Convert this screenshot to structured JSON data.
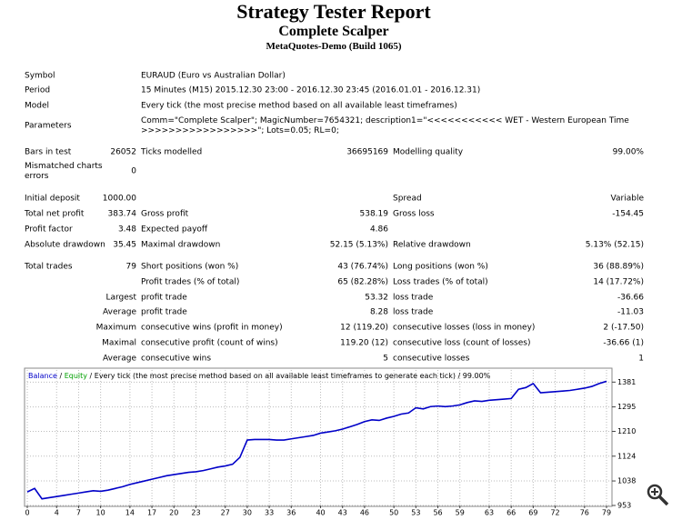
{
  "header": {
    "title": "Strategy Tester Report",
    "subtitle": "Complete Scalper",
    "server": "MetaQuotes-Demo (Build 1065)"
  },
  "table": {
    "rows": [
      {
        "c1": "Symbol",
        "c3": [
          "EURAUD (Euro vs Australian Dollar)"
        ]
      },
      {
        "c1": "Period",
        "c3": [
          "15 Minutes (M15) 2015.12.30 23:00 - 2016.12.30 23:45 (2016.01.01 - 2016.12.31)"
        ]
      },
      {
        "c1": "Model",
        "c3": [
          "Every tick (the most precise method based on all available least timeframes)"
        ]
      },
      {
        "c1": "Parameters",
        "c3": [
          "Comm=\"Complete Scalper\"; MagicNumber=7654321; description1=\"<<<<<<<<<<< WET - Western European Time",
          ">>>>>>>>>>>>>>>>>\"; Lots=0.05; RL=0;"
        ]
      },
      {
        "c1": "Bars in test",
        "c2": "26052",
        "c3": [
          "Ticks modelled"
        ],
        "c4": "36695169",
        "c5": "Modelling quality",
        "c6": "99.00%"
      },
      {
        "c1": [
          "Mismatched charts",
          "errors"
        ],
        "c2": "0"
      },
      {
        "c1": "Initial deposit",
        "c2": "1000.00",
        "c5": "Spread",
        "c6": "Variable"
      },
      {
        "c1": "Total net profit",
        "c2": "383.74",
        "c3": [
          "Gross profit"
        ],
        "c4": "538.19",
        "c5": "Gross loss",
        "c6": "-154.45"
      },
      {
        "c1": "Profit factor",
        "c2": "3.48",
        "c3": [
          "Expected payoff"
        ],
        "c4": "4.86"
      },
      {
        "c1": "Absolute drawdown",
        "c2": "35.45",
        "c3": [
          "Maximal drawdown"
        ],
        "c4": "52.15 (5.13%)",
        "c5": "Relative drawdown",
        "c6": "5.13% (52.15)"
      },
      {
        "c1": "Total trades",
        "c2": "79",
        "c3": [
          "Short positions (won %)"
        ],
        "c4": "43 (76.74%)",
        "c5": "Long positions (won %)",
        "c6": "36 (88.89%)"
      },
      {
        "c3": [
          "Profit trades (% of total)"
        ],
        "c4": "65 (82.28%)",
        "c5": "Loss trades (% of total)",
        "c6": "14 (17.72%)"
      },
      {
        "c2": "Largest",
        "c3": [
          "profit trade"
        ],
        "c4": "53.32",
        "c5": "loss trade",
        "c6": "-36.66"
      },
      {
        "c2": "Average",
        "c3": [
          "profit trade"
        ],
        "c4": "8.28",
        "c5": "loss trade",
        "c6": "-11.03"
      },
      {
        "c2": "Maximum",
        "c3": [
          "consecutive wins (profit in money)"
        ],
        "c4": "12 (119.20)",
        "c5": "consecutive losses (loss in money)",
        "c6": "2 (-17.50)"
      },
      {
        "c2": "Maximal",
        "c3": [
          "consecutive profit (count of wins)"
        ],
        "c4": "119.20 (12)",
        "c5": "consecutive loss (count of losses)",
        "c6": "-36.66 (1)"
      },
      {
        "c2": "Average",
        "c3": [
          "consecutive wins"
        ],
        "c4": "5",
        "c5": "consecutive losses",
        "c6": "1"
      }
    ]
  },
  "chart_data": {
    "type": "line",
    "legend": [
      {
        "text": "Balance",
        "color": "#0000c8"
      },
      {
        "text": "Equity",
        "color": "#00a000"
      },
      {
        "text": "Every tick (the most precise method based on all available least timeframes to generate each tick)",
        "color": "#000000"
      },
      {
        "text": "99.00%",
        "color": "#000000"
      }
    ],
    "separator": " / ",
    "x": [
      0,
      1,
      2,
      3,
      4,
      5,
      6,
      7,
      8,
      9,
      10,
      11,
      12,
      13,
      14,
      15,
      16,
      17,
      18,
      19,
      20,
      21,
      22,
      23,
      24,
      25,
      26,
      27,
      28,
      29,
      30,
      31,
      32,
      33,
      34,
      35,
      36,
      37,
      38,
      39,
      40,
      41,
      42,
      43,
      44,
      45,
      46,
      47,
      48,
      49,
      50,
      51,
      52,
      53,
      54,
      55,
      56,
      57,
      58,
      59,
      60,
      61,
      62,
      63,
      64,
      65,
      66,
      67,
      68,
      69,
      70,
      71,
      72,
      73,
      74,
      75,
      76,
      77,
      78,
      79
    ],
    "series": [
      {
        "name": "Balance",
        "color": "#0000c8",
        "values": [
          1000,
          1012,
          976,
          980,
          984,
          988,
          992,
          996,
          1000,
          1004,
          1002,
          1006,
          1012,
          1018,
          1026,
          1032,
          1038,
          1044,
          1050,
          1056,
          1060,
          1064,
          1068,
          1070,
          1074,
          1080,
          1086,
          1090,
          1096,
          1120,
          1180,
          1182,
          1182,
          1182,
          1180,
          1180,
          1184,
          1188,
          1192,
          1196,
          1204,
          1208,
          1212,
          1218,
          1226,
          1234,
          1244,
          1250,
          1248,
          1256,
          1262,
          1270,
          1274,
          1292,
          1288,
          1296,
          1298,
          1296,
          1298,
          1302,
          1310,
          1316,
          1314,
          1318,
          1320,
          1322,
          1324,
          1356,
          1362,
          1376,
          1344,
          1346,
          1348,
          1350,
          1352,
          1356,
          1360,
          1366,
          1376,
          1383.74
        ]
      }
    ],
    "xlim": [
      0,
      79
    ],
    "xticks": [
      0,
      4,
      7,
      10,
      14,
      17,
      20,
      23,
      27,
      30,
      33,
      36,
      40,
      43,
      46,
      50,
      53,
      56,
      59,
      63,
      66,
      69,
      72,
      76,
      79
    ],
    "ylim": [
      953,
      1423
    ],
    "yticks": [
      1381,
      1295,
      1210,
      1124,
      1038,
      953
    ],
    "grid": true
  }
}
